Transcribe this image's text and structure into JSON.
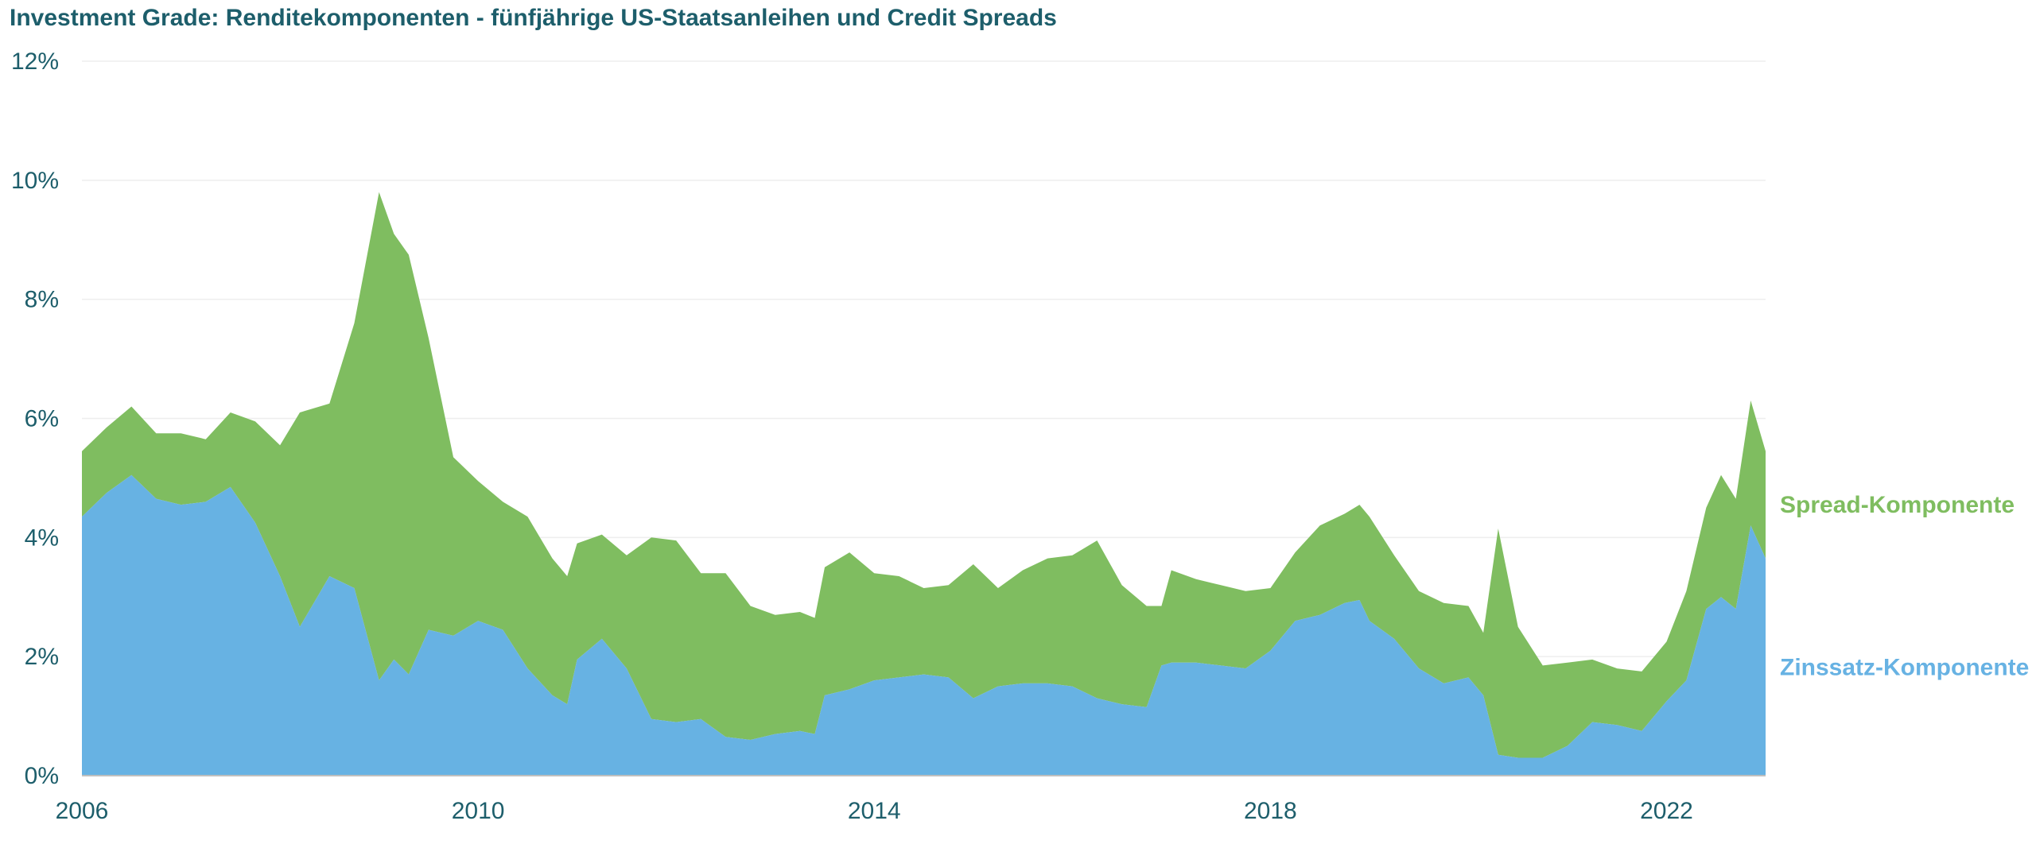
{
  "title": "Investment Grade: Renditekomponenten - fünfjährige US-Staatsanleihen und Credit Spreads",
  "colors": {
    "spread": "#7fbd60",
    "zins": "#67b2e3",
    "text": "#1d5e6b",
    "grid": "#eeeeee"
  },
  "chart_data": {
    "type": "area",
    "stacked": true,
    "title": "Investment Grade: Renditekomponenten - fünfjährige US-Staatsanleihen und Credit Spreads",
    "xlabel": "",
    "ylabel": "",
    "xlim": [
      2006.0,
      2023.0
    ],
    "ylim": [
      0,
      12
    ],
    "x_ticks": [
      2006,
      2010,
      2014,
      2018,
      2022
    ],
    "y_ticks": [
      0,
      2,
      4,
      6,
      8,
      10,
      12
    ],
    "y_tick_labels": [
      "0%",
      "2%",
      "4%",
      "6%",
      "8%",
      "10%",
      "12%"
    ],
    "grid": "horizontal",
    "legend": "labels at right end of series",
    "series": [
      {
        "name": "Zinssatz-Komponente",
        "color": "#67b2e3",
        "points": [
          [
            2006.0,
            4.35
          ],
          [
            2006.25,
            4.75
          ],
          [
            2006.5,
            5.05
          ],
          [
            2006.75,
            4.65
          ],
          [
            2007.0,
            4.55
          ],
          [
            2007.25,
            4.6
          ],
          [
            2007.5,
            4.85
          ],
          [
            2007.75,
            4.25
          ],
          [
            2008.0,
            3.35
          ],
          [
            2008.2,
            2.5
          ],
          [
            2008.5,
            3.35
          ],
          [
            2008.75,
            3.15
          ],
          [
            2009.0,
            1.6
          ],
          [
            2009.15,
            1.95
          ],
          [
            2009.3,
            1.7
          ],
          [
            2009.5,
            2.45
          ],
          [
            2009.75,
            2.35
          ],
          [
            2010.0,
            2.6
          ],
          [
            2010.25,
            2.45
          ],
          [
            2010.5,
            1.8
          ],
          [
            2010.75,
            1.35
          ],
          [
            2010.9,
            1.2
          ],
          [
            2011.0,
            1.95
          ],
          [
            2011.25,
            2.3
          ],
          [
            2011.5,
            1.8
          ],
          [
            2011.75,
            0.95
          ],
          [
            2012.0,
            0.9
          ],
          [
            2012.25,
            0.95
          ],
          [
            2012.5,
            0.65
          ],
          [
            2012.75,
            0.6
          ],
          [
            2013.0,
            0.7
          ],
          [
            2013.25,
            0.75
          ],
          [
            2013.4,
            0.7
          ],
          [
            2013.5,
            1.35
          ],
          [
            2013.75,
            1.45
          ],
          [
            2014.0,
            1.6
          ],
          [
            2014.25,
            1.65
          ],
          [
            2014.5,
            1.7
          ],
          [
            2014.75,
            1.65
          ],
          [
            2015.0,
            1.3
          ],
          [
            2015.25,
            1.5
          ],
          [
            2015.5,
            1.55
          ],
          [
            2015.75,
            1.55
          ],
          [
            2016.0,
            1.5
          ],
          [
            2016.25,
            1.3
          ],
          [
            2016.5,
            1.2
          ],
          [
            2016.75,
            1.15
          ],
          [
            2016.9,
            1.85
          ],
          [
            2017.0,
            1.9
          ],
          [
            2017.25,
            1.9
          ],
          [
            2017.5,
            1.85
          ],
          [
            2017.75,
            1.8
          ],
          [
            2018.0,
            2.1
          ],
          [
            2018.25,
            2.6
          ],
          [
            2018.5,
            2.7
          ],
          [
            2018.75,
            2.9
          ],
          [
            2018.9,
            2.95
          ],
          [
            2019.0,
            2.6
          ],
          [
            2019.25,
            2.3
          ],
          [
            2019.5,
            1.8
          ],
          [
            2019.75,
            1.55
          ],
          [
            2020.0,
            1.65
          ],
          [
            2020.15,
            1.35
          ],
          [
            2020.3,
            0.35
          ],
          [
            2020.5,
            0.3
          ],
          [
            2020.75,
            0.3
          ],
          [
            2021.0,
            0.5
          ],
          [
            2021.25,
            0.9
          ],
          [
            2021.5,
            0.85
          ],
          [
            2021.75,
            0.75
          ],
          [
            2022.0,
            1.25
          ],
          [
            2022.2,
            1.6
          ],
          [
            2022.4,
            2.8
          ],
          [
            2022.55,
            3.0
          ],
          [
            2022.7,
            2.8
          ],
          [
            2022.85,
            4.2
          ],
          [
            2023.0,
            3.65
          ]
        ]
      },
      {
        "name": "Spread-Komponente",
        "color": "#7fbd60",
        "points": [
          [
            2006.0,
            1.1
          ],
          [
            2006.25,
            1.1
          ],
          [
            2006.5,
            1.15
          ],
          [
            2006.75,
            1.1
          ],
          [
            2007.0,
            1.2
          ],
          [
            2007.25,
            1.05
          ],
          [
            2007.5,
            1.25
          ],
          [
            2007.75,
            1.7
          ],
          [
            2008.0,
            2.2
          ],
          [
            2008.2,
            3.6
          ],
          [
            2008.5,
            2.9
          ],
          [
            2008.75,
            4.45
          ],
          [
            2009.0,
            8.2
          ],
          [
            2009.15,
            7.15
          ],
          [
            2009.3,
            7.05
          ],
          [
            2009.5,
            4.9
          ],
          [
            2009.75,
            3.0
          ],
          [
            2010.0,
            2.35
          ],
          [
            2010.25,
            2.15
          ],
          [
            2010.5,
            2.55
          ],
          [
            2010.75,
            2.3
          ],
          [
            2010.9,
            2.15
          ],
          [
            2011.0,
            1.95
          ],
          [
            2011.25,
            1.75
          ],
          [
            2011.5,
            1.9
          ],
          [
            2011.75,
            3.05
          ],
          [
            2012.0,
            3.05
          ],
          [
            2012.25,
            2.45
          ],
          [
            2012.5,
            2.75
          ],
          [
            2012.75,
            2.25
          ],
          [
            2013.0,
            2.0
          ],
          [
            2013.25,
            2.0
          ],
          [
            2013.4,
            1.95
          ],
          [
            2013.5,
            2.15
          ],
          [
            2013.75,
            2.3
          ],
          [
            2014.0,
            1.8
          ],
          [
            2014.25,
            1.7
          ],
          [
            2014.5,
            1.45
          ],
          [
            2014.75,
            1.55
          ],
          [
            2015.0,
            2.25
          ],
          [
            2015.25,
            1.65
          ],
          [
            2015.5,
            1.9
          ],
          [
            2015.75,
            2.1
          ],
          [
            2016.0,
            2.2
          ],
          [
            2016.25,
            2.65
          ],
          [
            2016.5,
            2.0
          ],
          [
            2016.75,
            1.7
          ],
          [
            2016.9,
            1.0
          ],
          [
            2017.0,
            1.55
          ],
          [
            2017.25,
            1.4
          ],
          [
            2017.5,
            1.35
          ],
          [
            2017.75,
            1.3
          ],
          [
            2018.0,
            1.05
          ],
          [
            2018.25,
            1.15
          ],
          [
            2018.5,
            1.5
          ],
          [
            2018.75,
            1.5
          ],
          [
            2018.9,
            1.6
          ],
          [
            2019.0,
            1.75
          ],
          [
            2019.25,
            1.4
          ],
          [
            2019.5,
            1.3
          ],
          [
            2019.75,
            1.35
          ],
          [
            2020.0,
            1.2
          ],
          [
            2020.15,
            1.05
          ],
          [
            2020.3,
            3.8
          ],
          [
            2020.5,
            2.2
          ],
          [
            2020.75,
            1.55
          ],
          [
            2021.0,
            1.4
          ],
          [
            2021.25,
            1.05
          ],
          [
            2021.5,
            0.95
          ],
          [
            2021.75,
            1.0
          ],
          [
            2022.0,
            1.0
          ],
          [
            2022.2,
            1.5
          ],
          [
            2022.4,
            1.7
          ],
          [
            2022.55,
            2.05
          ],
          [
            2022.7,
            1.85
          ],
          [
            2022.85,
            2.1
          ],
          [
            2023.0,
            1.8
          ]
        ]
      }
    ]
  }
}
